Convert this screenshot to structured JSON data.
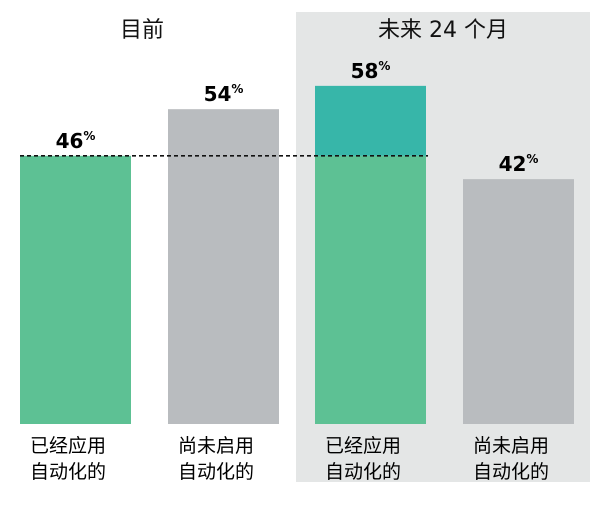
{
  "chart_data": {
    "type": "bar",
    "groups": [
      {
        "title": "目前",
        "highlighted": false
      },
      {
        "title": "未来 24 个月",
        "highlighted": true
      }
    ],
    "categories": [
      [
        "已经应用",
        "自动化的"
      ],
      [
        "尚未启用",
        "自动化的"
      ],
      [
        "已经应用",
        "自动化的"
      ],
      [
        "尚未启用",
        "自动化的"
      ]
    ],
    "values": [
      46,
      54,
      58,
      42
    ],
    "unit": "%",
    "group_of_bar": [
      0,
      0,
      1,
      1
    ],
    "reference_line": {
      "value": 46,
      "style": "dashed"
    },
    "increase_segment": {
      "bar_index": 2,
      "from": 46,
      "to": 58
    },
    "ylim": [
      0,
      80
    ],
    "grid": false,
    "colors": {
      "applied": "#5dc194",
      "not_applied": "#b9bcbf",
      "increase": "#37b6a9",
      "future_panel": "#e4e6e6",
      "reference_line": "#111111"
    }
  }
}
